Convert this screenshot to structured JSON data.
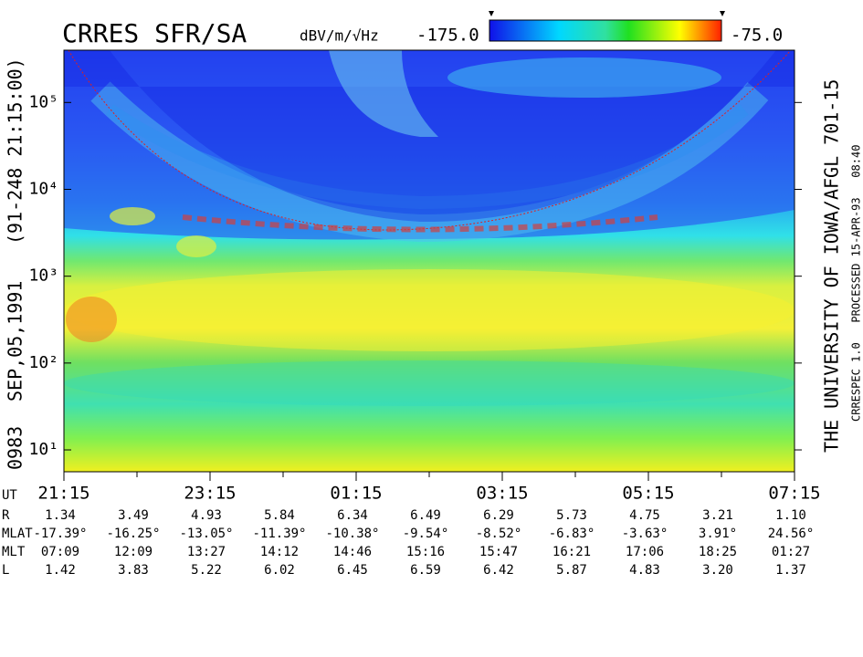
{
  "chart_data": {
    "type": "spectrogram",
    "title": "CRRES SFR/SA",
    "colorbar": {
      "unit": "dBV/m/√Hz",
      "clim": [
        {
          "value": -175,
          "label": "-175.0"
        },
        {
          "value": -75,
          "label": "-75.0"
        }
      ]
    },
    "left_text": [
      "0983",
      "SEP,05,1991",
      "(91-248 21:15:00)"
    ],
    "right_text": [
      "THE UNIVERSITY OF IOWA/AFGL 701-15",
      "CRRESPEC 1.0   PROCESSED 15-APR-93   08:40"
    ],
    "log_y": true,
    "ylim": [
      5.6,
      400000
    ],
    "yticks": [
      {
        "value": 10,
        "label": "10¹"
      },
      {
        "value": 100,
        "label": "10²"
      },
      {
        "value": 1000,
        "label": "10³"
      },
      {
        "value": 10000,
        "label": "10⁴"
      },
      {
        "value": 100000,
        "label": "10⁵"
      }
    ],
    "x_label": "UT",
    "categories": [
      "21:15",
      null,
      "23:15",
      null,
      "01:15",
      null,
      "03:15",
      null,
      "05:15",
      null,
      "07:15"
    ],
    "ephemeris": [
      {
        "label": "R",
        "values": [
          "1.34",
          "3.49",
          "4.93",
          "5.84",
          "6.34",
          "6.49",
          "6.29",
          "5.73",
          "4.75",
          "3.21",
          "1.10"
        ]
      },
      {
        "label": "MLAT",
        "values": [
          "-17.39°",
          "-16.25°",
          "-13.05°",
          "-11.39°",
          "-10.38°",
          "-9.54°",
          "-8.52°",
          "-6.83°",
          "-3.63°",
          "3.91°",
          "24.56°"
        ]
      },
      {
        "label": "MLT",
        "values": [
          "07:09",
          "12:09",
          "13:27",
          "14:12",
          "14:46",
          "15:16",
          "15:47",
          "16:21",
          "17:06",
          "18:25",
          "01:27"
        ]
      },
      {
        "label": "L",
        "values": [
          "1.42",
          "3.83",
          "5.22",
          "6.02",
          "6.45",
          "6.59",
          "6.42",
          "5.87",
          "4.83",
          "3.20",
          "1.37"
        ]
      }
    ]
  }
}
